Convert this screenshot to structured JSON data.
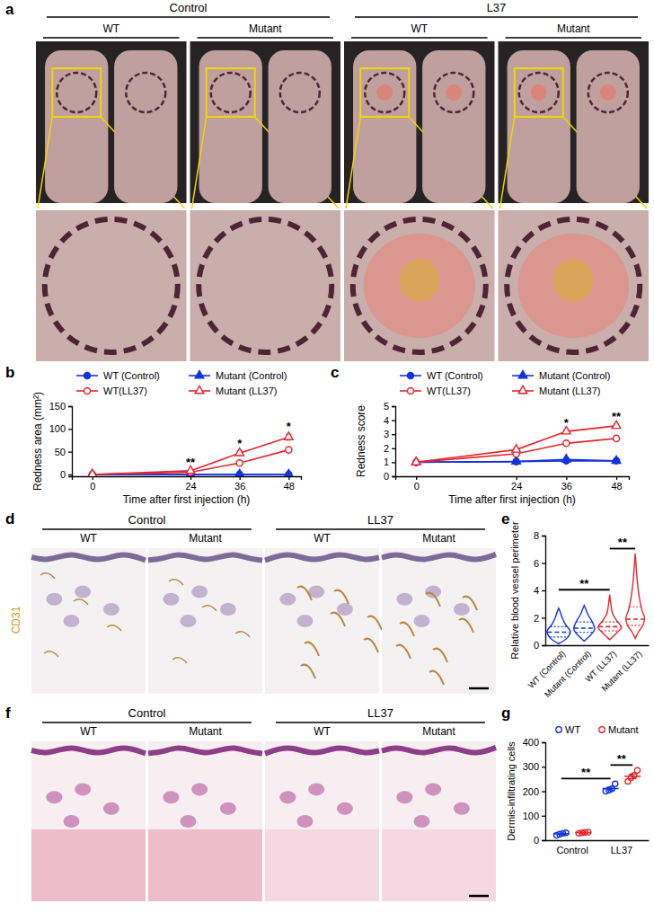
{
  "chart_data": [
    {
      "panel_label": "b",
      "type": "line",
      "x_label": "Time after first injection (h)",
      "y_label": "Redness area (mm²)",
      "x": [
        0,
        24,
        36,
        48
      ],
      "xlim": [
        -5,
        51
      ],
      "xticks": [
        0,
        24,
        36,
        48
      ],
      "ylim": [
        -4,
        150
      ],
      "yticks": [
        0,
        50,
        100,
        150
      ],
      "legend": "top",
      "series": [
        {
          "name": "WT (Control)",
          "color": "#1432e0",
          "marker": "circle",
          "values": [
            0,
            0,
            0,
            0
          ],
          "error": [
            0,
            0,
            0,
            0
          ]
        },
        {
          "name": "Mutant (Control)",
          "color": "#1432e0",
          "marker": "triangle",
          "values": [
            0,
            0,
            0,
            0
          ],
          "error": [
            0,
            0,
            0,
            0
          ]
        },
        {
          "name": "WT(LL37)",
          "color": "#e6252b",
          "marker": "circle-open",
          "values": [
            0,
            5,
            25,
            54
          ],
          "error": [
            0,
            1,
            2,
            3
          ]
        },
        {
          "name": "Mutant (LL37)",
          "color": "#e6252b",
          "marker": "triangle-open",
          "values": [
            0,
            8,
            47,
            82
          ],
          "error": [
            0,
            1.5,
            5,
            6
          ]
        }
      ],
      "annotations": [
        {
          "x": 24,
          "text": "**"
        },
        {
          "x": 36,
          "text": "*"
        },
        {
          "x": 48,
          "text": "*"
        }
      ]
    },
    {
      "panel_label": "c",
      "type": "line",
      "x_label": "Time after first injection (h)",
      "y_label": "Redness score",
      "x": [
        0,
        24,
        36,
        48
      ],
      "xlim": [
        -5,
        51
      ],
      "xticks": [
        0,
        24,
        36,
        48
      ],
      "ylim": [
        0,
        5
      ],
      "yticks": [
        0,
        1,
        2,
        3,
        4,
        5
      ],
      "legend": "top",
      "series": [
        {
          "name": "WT (Control)",
          "color": "#1432e0",
          "marker": "circle",
          "values": [
            1,
            1.05,
            1.1,
            1.1
          ],
          "error": [
            0,
            0.03,
            0.05,
            0.05
          ]
        },
        {
          "name": "Mutant (Control)",
          "color": "#1432e0",
          "marker": "triangle",
          "values": [
            1,
            1.05,
            1.2,
            1.1
          ],
          "error": [
            0,
            0.03,
            0.12,
            0.06
          ]
        },
        {
          "name": "WT(LL37)",
          "color": "#e6252b",
          "marker": "circle-open",
          "values": [
            1,
            1.6,
            2.35,
            2.7
          ],
          "error": [
            0,
            0.1,
            0.12,
            0.12
          ]
        },
        {
          "name": "Mutant (LL37)",
          "color": "#e6252b",
          "marker": "triangle-open",
          "values": [
            1,
            1.9,
            3.2,
            3.6
          ],
          "error": [
            0,
            0.08,
            0.1,
            0.1
          ]
        }
      ],
      "annotations": [
        {
          "x": 36,
          "text": "*"
        },
        {
          "x": 48,
          "text": "**"
        }
      ]
    },
    {
      "panel_label": "e",
      "type": "violin",
      "y_label": "Relative blood vessel perimeter",
      "categories": [
        "WT (Control)",
        "Mutant (Control)",
        "WT (LL37)",
        "Mutant (LL37)"
      ],
      "colors": [
        "#1432e0",
        "#1432e0",
        "#e6252b",
        "#e6252b"
      ],
      "ylim": [
        0,
        8
      ],
      "yticks": [
        0,
        2,
        4,
        6,
        8
      ],
      "violins": [
        {
          "y": [
            0.1,
            0.5,
            1.0,
            1.5,
            2.0,
            2.5,
            2.7
          ],
          "density": [
            0,
            0.7,
            1,
            0.6,
            0.3,
            0.1,
            0
          ],
          "q1": 0.6,
          "median": 0.95,
          "q3": 1.35
        },
        {
          "y": [
            0.3,
            0.7,
            1.2,
            1.7,
            2.2,
            2.6,
            2.9
          ],
          "density": [
            0,
            0.5,
            0.9,
            0.7,
            0.35,
            0.15,
            0
          ],
          "q1": 0.95,
          "median": 1.25,
          "q3": 1.7
        },
        {
          "y": [
            0.4,
            0.9,
            1.3,
            1.8,
            2.3,
            3.0,
            3.7
          ],
          "density": [
            0,
            0.6,
            1,
            0.6,
            0.25,
            0.1,
            0
          ],
          "q1": 1.05,
          "median": 1.35,
          "q3": 1.7
        },
        {
          "y": [
            0.5,
            1.0,
            1.5,
            2.0,
            2.5,
            3.5,
            4.5,
            5.5,
            6.7
          ],
          "density": [
            0,
            0.3,
            0.7,
            0.8,
            0.6,
            0.35,
            0.2,
            0.1,
            0
          ],
          "q1": 1.45,
          "median": 1.9,
          "q3": 2.8
        }
      ],
      "annotations": [
        {
          "between": [
            "WT (Control)",
            "WT (LL37)"
          ],
          "text": "**"
        },
        {
          "between": [
            "WT (LL37)",
            "Mutant (LL37)"
          ],
          "text": "**"
        }
      ]
    },
    {
      "panel_label": "g",
      "type": "scatter",
      "y_label": "Dermis-infiltrating cells",
      "categories": [
        "Control",
        "LL37"
      ],
      "ylim": [
        0,
        400
      ],
      "yticks": [
        0,
        100,
        200,
        300,
        400
      ],
      "legend": "top",
      "series": [
        {
          "name": "WT",
          "color": "#1432e0",
          "marker": "circle-open",
          "values": [
            [
              20,
              25,
              28,
              30
            ],
            [
              200,
              205,
              210,
              230
            ]
          ],
          "mean": [
            26,
            211
          ],
          "error": [
            2,
            6
          ]
        },
        {
          "name": "Mutant",
          "color": "#e6252b",
          "marker": "circle-open",
          "values": [
            [
              28,
              30,
              32,
              33
            ],
            [
              240,
              255,
              265,
              285
            ]
          ],
          "mean": [
            31,
            261
          ],
          "error": [
            1,
            9
          ]
        }
      ],
      "annotations": [
        {
          "between": [
            [
              "Control",
              "WT"
            ],
            [
              "LL37",
              "WT"
            ]
          ],
          "text": "**"
        },
        {
          "between": [
            [
              "LL37",
              "WT"
            ],
            [
              "LL37",
              "Mutant"
            ]
          ],
          "text": "**"
        }
      ]
    }
  ],
  "image_panels": [
    {
      "panel_label": "a",
      "groups": [
        {
          "label": "Control",
          "columns": [
            "WT",
            "Mutant"
          ]
        },
        {
          "label": "L37",
          "columns": [
            "WT",
            "Mutant"
          ]
        }
      ]
    },
    {
      "panel_label": "d",
      "groups": [
        {
          "label": "Control",
          "columns": [
            "WT",
            "Mutant"
          ]
        },
        {
          "label": "LL37",
          "columns": [
            "WT",
            "Mutant"
          ]
        }
      ],
      "stain": "CD31"
    },
    {
      "panel_label": "f",
      "groups": [
        {
          "label": "Control",
          "columns": [
            "WT",
            "Mutant"
          ]
        },
        {
          "label": "LL37",
          "columns": [
            "WT",
            "Mutant"
          ]
        }
      ]
    }
  ]
}
